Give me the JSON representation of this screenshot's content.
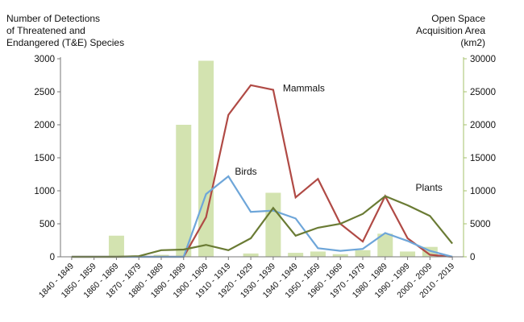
{
  "chart_data": {
    "type": "bar+line",
    "left_axis": {
      "title_lines": [
        "Number of Detections",
        "of Threatened and",
        "Endangered (T&E) Species"
      ],
      "ylim": [
        0,
        3000
      ],
      "ticks": [
        "0",
        "500",
        "1000",
        "1500",
        "2000",
        "2500",
        "3000"
      ]
    },
    "right_axis": {
      "title_lines": [
        "Open Space",
        "Acquisition Area",
        "(km2)"
      ],
      "ylim": [
        0,
        30000
      ],
      "ticks": [
        "0",
        "5000",
        "10000",
        "15000",
        "20000",
        "25000",
        "30000"
      ],
      "color": "#a4c26b"
    },
    "categories": [
      "1840 - 1849",
      "1850 - 1859",
      "1860 - 1869",
      "1870 - 1879",
      "1880 - 1889",
      "1890 - 1899",
      "1900 - 1909",
      "1910 - 1919",
      "1920 - 1929",
      "1930 - 1939",
      "1940 - 1949",
      "1950 - 1959",
      "1960 - 1969",
      "1970 - 1979",
      "1980 - 1989",
      "1990 - 1999",
      "2000 - 2009",
      "2010 - 2019"
    ],
    "bars": {
      "axis": "right",
      "color": "#d3e3b0",
      "values": [
        0,
        0,
        3200,
        200,
        300,
        20000,
        29700,
        0,
        500,
        9700,
        600,
        800,
        400,
        1000,
        3500,
        800,
        1500,
        0
      ]
    },
    "series": [
      {
        "name": "Mammals",
        "color": "#b04a45",
        "values": [
          0,
          0,
          0,
          0,
          0,
          0,
          600,
          2150,
          2600,
          2530,
          900,
          1180,
          500,
          230,
          920,
          280,
          30,
          0
        ]
      },
      {
        "name": "Birds",
        "color": "#6ea6d9",
        "values": [
          0,
          0,
          0,
          0,
          0,
          0,
          950,
          1220,
          680,
          700,
          580,
          130,
          90,
          120,
          360,
          240,
          90,
          0
        ]
      },
      {
        "name": "Plants",
        "color": "#6a7b34",
        "values": [
          0,
          0,
          0,
          10,
          100,
          110,
          180,
          100,
          280,
          740,
          320,
          440,
          500,
          650,
          920,
          780,
          620,
          200
        ]
      }
    ],
    "grid": false,
    "legend": "inline labels"
  }
}
